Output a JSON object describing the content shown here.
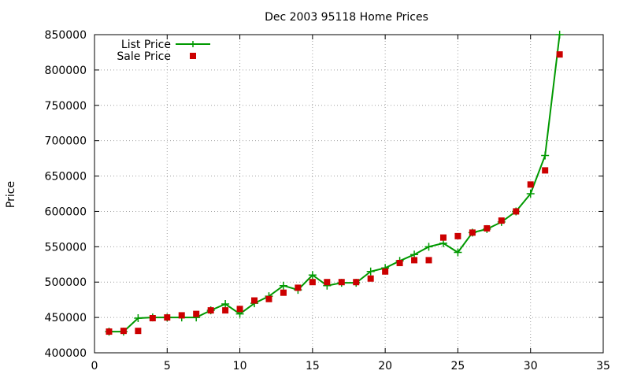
{
  "chart_data": {
    "type": "line",
    "title": "Dec 2003 95118 Home Prices",
    "xlabel": "",
    "ylabel": "Price",
    "xlim": [
      0,
      35
    ],
    "ylim": [
      400000,
      850000
    ],
    "xticks": [
      0,
      5,
      10,
      15,
      20,
      25,
      30,
      35
    ],
    "yticks": [
      400000,
      450000,
      500000,
      550000,
      600000,
      650000,
      700000,
      750000,
      800000,
      850000
    ],
    "grid": true,
    "legend": "top-left",
    "series": [
      {
        "name": "List Price",
        "style": "line+cross",
        "color": "#009900",
        "x": [
          1,
          2,
          3,
          4,
          5,
          6,
          7,
          8,
          9,
          10,
          11,
          12,
          13,
          14,
          15,
          16,
          17,
          18,
          19,
          20,
          21,
          22,
          23,
          24,
          25,
          26,
          27,
          28,
          29,
          30,
          31,
          32
        ],
        "y": [
          430000,
          430000,
          449000,
          450000,
          450000,
          450000,
          450000,
          460000,
          469000,
          455000,
          470000,
          480000,
          495000,
          489000,
          510000,
          495000,
          499000,
          499000,
          515000,
          520000,
          530000,
          539000,
          550000,
          555000,
          542000,
          570000,
          575000,
          585000,
          600000,
          625000,
          679000,
          850000
        ]
      },
      {
        "name": "Sale Price",
        "style": "square",
        "color": "#cc0000",
        "x": [
          1,
          2,
          3,
          4,
          5,
          6,
          7,
          8,
          9,
          10,
          11,
          12,
          13,
          14,
          15,
          16,
          17,
          18,
          19,
          20,
          21,
          22,
          23,
          24,
          25,
          26,
          27,
          28,
          29,
          30,
          31,
          32
        ],
        "y": [
          430000,
          431000,
          431000,
          449000,
          450000,
          453000,
          455000,
          460000,
          460000,
          462000,
          474000,
          476000,
          485000,
          492000,
          500000,
          500000,
          500000,
          500000,
          505000,
          515000,
          527000,
          531000,
          531000,
          563000,
          565000,
          570000,
          576000,
          587000,
          600000,
          638000,
          658000,
          822000
        ]
      }
    ]
  }
}
